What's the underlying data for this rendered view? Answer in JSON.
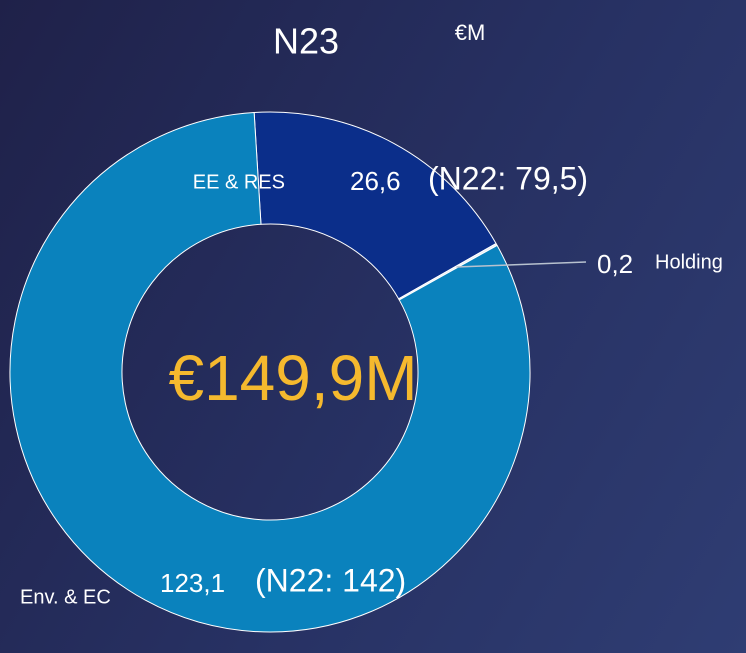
{
  "chart_data": {
    "type": "donut",
    "title": "N23",
    "unit": "€M",
    "center_label": "€149,9M",
    "categories": [
      "EE & RES",
      "Holding",
      "Env. & EC"
    ],
    "values": [
      26.6,
      0.2,
      123.1
    ],
    "value_labels": [
      "26,6",
      "0,2",
      "123,1"
    ],
    "comparison_labels": [
      "(N22: 79,5)",
      null,
      "(N22: 142)"
    ],
    "colors": [
      "#0b2e8a",
      "#e8eef6",
      "#0a82bd"
    ]
  }
}
